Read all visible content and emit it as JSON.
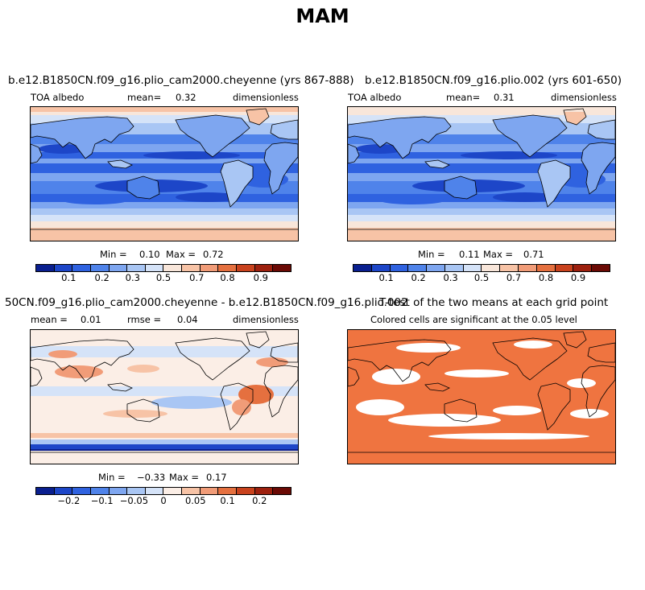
{
  "title": "MAM",
  "colors": {
    "seq": [
      "#0a1f8f",
      "#1d46c8",
      "#2f62e0",
      "#4f83ea",
      "#7ea6f0",
      "#a9c6f4",
      "#d5e3f8",
      "#f8e6da",
      "#f7c3a6",
      "#f19c78",
      "#e5703f",
      "#c9421d",
      "#9d200e",
      "#6b0a05"
    ],
    "diff": [
      "#0a1f8f",
      "#1d46c8",
      "#2f62e0",
      "#4f83ea",
      "#7ea6f0",
      "#a9c6f4",
      "#d5e3f8",
      "#fbeee6",
      "#f7c3a6",
      "#f19c78",
      "#e5703f",
      "#c9421d",
      "#9d200e",
      "#6b0a05"
    ],
    "sig": "#ef7440",
    "coast": "#000000"
  },
  "panel1": {
    "title": "b.e12.B1850CN.f09_g16.plio_cam2000.cheyenne (yrs 867-888)",
    "var": "TOA albedo",
    "mean_label": "mean=",
    "mean": "0.32",
    "units": "dimensionless",
    "min_label": "Min =",
    "min": "0.10",
    "max_label": "Max =",
    "max": "0.72",
    "ticks": [
      "0.1",
      "0.2",
      "0.3",
      "0.5",
      "0.7",
      "0.8",
      "0.9"
    ]
  },
  "panel2": {
    "title": "b.e12.B1850CN.f09_g16.plio.002 (yrs 601-650)",
    "var": "TOA albedo",
    "mean_label": "mean=",
    "mean": "0.31",
    "units": "dimensionless",
    "min_label": "Min =",
    "min": "0.11",
    "max_label": "Max =",
    "max": "0.71",
    "ticks": [
      "0.1",
      "0.2",
      "0.3",
      "0.5",
      "0.7",
      "0.8",
      "0.9"
    ]
  },
  "panel3": {
    "title": "50CN.f09_g16.plio_cam2000.cheyenne - b.e12.B1850CN.f09_g16.plio.002",
    "mean_label": "mean =",
    "mean": "0.01",
    "rmse_label": "rmse =",
    "rmse": "0.04",
    "units": "dimensionless",
    "min_label": "Min =",
    "min": "−0.33",
    "max_label": "Max =",
    "max": "0.17",
    "ticks": [
      "−0.2",
      "−0.1",
      "−0.05",
      "0",
      "0.05",
      "0.1",
      "0.2"
    ]
  },
  "panel4": {
    "title": "T-test of the two means at each grid point",
    "subtitle": "Colored cells are significant at the 0.05 level"
  }
}
